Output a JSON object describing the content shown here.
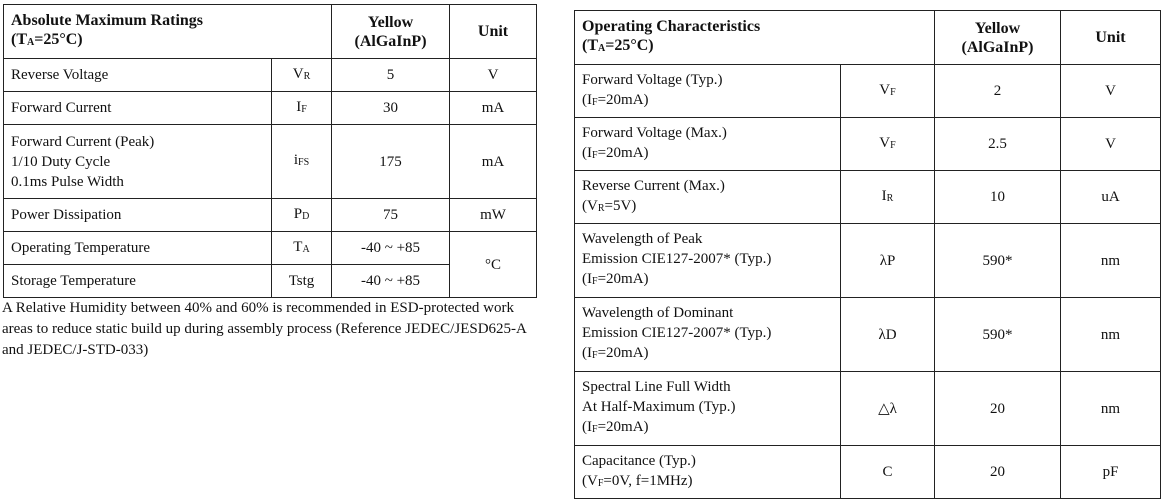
{
  "left_table": {
    "header": {
      "title": "Absolute Maximum Ratings",
      "condition_main": "(T",
      "condition_sub": "A",
      "condition_tail": "=25°C)",
      "col_color": "Yellow",
      "col_material": "(AlGaInP)",
      "col_unit": "Unit"
    },
    "rows": [
      {
        "param": "Reverse Voltage",
        "sym_main": "V",
        "sym_sub": "R",
        "value": "5",
        "unit": "V"
      },
      {
        "param": "Forward Current",
        "sym_main": "I",
        "sym_sub": "F",
        "value": "30",
        "unit": "mA"
      },
      {
        "param": "Forward Current (Peak)\n1/10 Duty Cycle\n0.1ms Pulse Width",
        "sym_main": "i",
        "sym_sub": "FS",
        "value": "175",
        "unit": "mA"
      },
      {
        "param": "Power Dissipation",
        "sym_main": "P",
        "sym_sub": "D",
        "value": "75",
        "unit": "mW"
      },
      {
        "param": "Operating Temperature",
        "sym_main": "T",
        "sym_sub": "A",
        "value": "-40 ~ +85",
        "unit": "°C"
      },
      {
        "param": "Storage Temperature",
        "sym_main": "Tstg",
        "sym_sub": "",
        "value": "-40 ~ +85",
        "unit": ""
      }
    ],
    "note": "A Relative Humidity between 40% and 60% is recommended in ESD-protected work areas to reduce static build up during assembly process (Reference JEDEC/JESD625-A and JEDEC/J-STD-033)"
  },
  "right_table": {
    "header": {
      "title": "Operating Characteristics",
      "condition_main": "(T",
      "condition_sub": "A",
      "condition_tail": "=25°C)",
      "col_color": "Yellow",
      "col_material": "(AlGaInP)",
      "col_unit": "Unit"
    },
    "rows": [
      {
        "p1": "Forward Voltage (Typ.)",
        "p2": "",
        "cond_main": "(I",
        "cond_sub": "F",
        "cond_tail": "=20mA)",
        "sym_main": "V",
        "sym_sub": "F",
        "value": "2",
        "unit": "V"
      },
      {
        "p1": "Forward Voltage (Max.)",
        "p2": "",
        "cond_main": "(I",
        "cond_sub": "F",
        "cond_tail": "=20mA)",
        "sym_main": "V",
        "sym_sub": "F",
        "value": "2.5",
        "unit": "V"
      },
      {
        "p1": "Reverse Current (Max.)",
        "p2": "",
        "cond_main": "(V",
        "cond_sub": "R",
        "cond_tail": "=5V)",
        "sym_main": "I",
        "sym_sub": "R",
        "value": "10",
        "unit": "uA"
      },
      {
        "p1": "Wavelength of Peak",
        "p2": "Emission CIE127-2007* (Typ.)",
        "cond_main": "(I",
        "cond_sub": "F",
        "cond_tail": "=20mA)",
        "sym_main": "λP",
        "sym_sub": "",
        "value": "590*",
        "unit": "nm"
      },
      {
        "p1": "Wavelength of Dominant",
        "p2": "Emission CIE127-2007* (Typ.)",
        "cond_main": "(I",
        "cond_sub": "F",
        "cond_tail": "=20mA)",
        "sym_main": "λD",
        "sym_sub": "",
        "value": "590*",
        "unit": "nm"
      },
      {
        "p1": "Spectral Line Full Width",
        "p2": "At Half-Maximum (Typ.)",
        "cond_main": "(I",
        "cond_sub": "F",
        "cond_tail": "=20mA)",
        "sym_main": "△λ",
        "sym_sub": "",
        "value": "20",
        "unit": "nm"
      },
      {
        "p1": "Capacitance (Typ.)",
        "p2": "",
        "cond_main": "(V",
        "cond_sub": "F",
        "cond_tail": "=0V, f=1MHz)",
        "sym_main": "C",
        "sym_sub": "",
        "value": "20",
        "unit": "pF"
      }
    ]
  }
}
